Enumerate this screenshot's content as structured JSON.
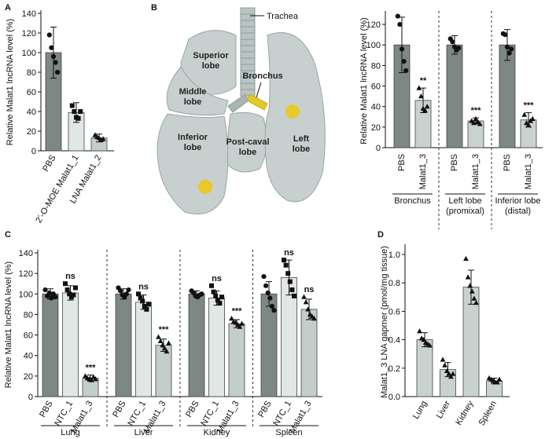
{
  "chart_data": [
    {
      "type": "bar",
      "panel": "A",
      "ylabel": "Relative Malat1 lncRNA level (%)",
      "categories": [
        "PBS",
        "2’-O-MOE Malat1_1",
        "LNA Malat1_2"
      ],
      "values": [
        100,
        39,
        13
      ],
      "errors": [
        26,
        10,
        4
      ],
      "points": [
        [
          118,
          105,
          96,
          90,
          80
        ],
        [
          46,
          40,
          34,
          33,
          40
        ],
        [
          16,
          14,
          13,
          11,
          12
        ]
      ],
      "colors": [
        "#7d8784",
        "#e1e7e5",
        "#c3cdca"
      ],
      "markers": [
        "circle",
        "square",
        "triangle"
      ],
      "ylim": [
        0,
        140
      ],
      "yticks": [
        0,
        20,
        40,
        60,
        80,
        100,
        120,
        140
      ]
    },
    {
      "type": "bar",
      "panel": "B",
      "ylabel": "Relative Malat1 lncRNA level (%)",
      "groups": [
        [
          "Bronchus"
        ],
        [
          "Left lobe",
          "(promixal)"
        ],
        [
          "Inferior lobe",
          "(distal)"
        ]
      ],
      "categories": [
        "PBS",
        "Malat1_3",
        "PBS",
        "Malat1_3",
        "PBS",
        "Malat1_3"
      ],
      "values": [
        100,
        46,
        100,
        26,
        100,
        27
      ],
      "errors": [
        27,
        12,
        9,
        3,
        15,
        7
      ],
      "annotations": [
        null,
        "**",
        null,
        "***",
        null,
        "***"
      ],
      "points": [
        [
          128,
          120,
          96,
          84,
          75
        ],
        [
          58,
          50,
          38,
          36,
          40
        ],
        [
          106,
          103,
          98,
          95,
          97
        ],
        [
          26,
          24,
          28,
          25,
          23
        ],
        [
          111,
          110,
          98,
          92,
          96
        ],
        [
          32,
          24,
          22,
          26,
          28
        ]
      ],
      "colors": [
        "#7d8784",
        "#c9d2cf"
      ],
      "markers": [
        "circle",
        "triangle"
      ],
      "ylim": [
        0,
        130
      ],
      "yticks": [
        0,
        20,
        40,
        60,
        80,
        100,
        120
      ]
    },
    {
      "type": "bar",
      "panel": "C",
      "ylabel": "Relative Malat1 lncRNA level (%)",
      "groups": [
        [
          "Lung"
        ],
        [
          "Liver"
        ],
        [
          "Kidney"
        ],
        [
          "Spleen"
        ]
      ],
      "categories": [
        "PBS",
        "NTC_1",
        "Malat1_3",
        "PBS",
        "NTC_1",
        "Malat1_3",
        "PBS",
        "NTC_1",
        "Malat1_3",
        "PBS",
        "NTC_1",
        "Malat1_3"
      ],
      "values": [
        100,
        101,
        18,
        100,
        92,
        50,
        100,
        96,
        71,
        100,
        116,
        85
      ],
      "errors": [
        5,
        7,
        3,
        5,
        7,
        6,
        3,
        7,
        4,
        12,
        17,
        10
      ],
      "annotations": [
        null,
        "ns",
        "***",
        null,
        "ns",
        "***",
        null,
        "ns",
        "***",
        null,
        "ns",
        "ns"
      ],
      "points": [
        [
          104,
          98,
          101,
          96,
          100,
          97
        ],
        [
          110,
          104,
          100,
          97,
          99,
          106
        ],
        [
          20,
          18,
          17,
          16,
          19,
          17
        ],
        [
          106,
          103,
          99,
          97,
          100,
          104
        ],
        [
          100,
          96,
          93,
          88,
          85,
          90
        ],
        [
          58,
          54,
          50,
          47,
          44,
          52
        ],
        [
          103,
          101,
          98,
          97,
          99,
          100
        ],
        [
          108,
          102,
          98,
          94,
          91,
          97
        ],
        [
          76,
          73,
          72,
          70,
          68,
          71
        ],
        [
          117,
          108,
          101,
          96,
          88,
          84
        ],
        [
          133,
          128,
          120,
          112,
          104,
          98
        ],
        [
          97,
          92,
          85,
          80,
          78,
          76
        ]
      ],
      "colors": [
        "#7d8784",
        "#e1e7e5",
        "#c3cdca"
      ],
      "markers": [
        "circle",
        "square",
        "triangle"
      ],
      "ylim": [
        0,
        140
      ],
      "yticks": [
        0,
        20,
        40,
        60,
        80,
        100,
        120,
        140
      ]
    },
    {
      "type": "bar",
      "panel": "D",
      "ylabel": "Malat1_3 LNA gapmer (pmol/mg tissue)",
      "categories": [
        "Lung",
        "Liver",
        "Kidney",
        "Spleen"
      ],
      "values": [
        0.4,
        0.19,
        0.77,
        0.11
      ],
      "errors": [
        0.05,
        0.05,
        0.12,
        0.02
      ],
      "points": [
        [
          0.46,
          0.41,
          0.4,
          0.38,
          0.37,
          0.36
        ],
        [
          0.26,
          0.22,
          0.18,
          0.16,
          0.14,
          0.16
        ],
        [
          0.97,
          0.84,
          0.78,
          0.74,
          0.69,
          0.66
        ],
        [
          0.13,
          0.12,
          0.11,
          0.1,
          0.1,
          0.12
        ]
      ],
      "colors": [
        "#c9d2cf"
      ],
      "markers": [
        "triangle"
      ],
      "ylim": [
        0,
        1.05
      ],
      "yticks": [
        {
          "value": 0,
          "label": "0.0"
        },
        0.2,
        0.4,
        0.6,
        0.8,
        {
          "value": 1,
          "label": "1.0"
        }
      ]
    }
  ],
  "diagram": {
    "labels": {
      "trachea": "Trachea",
      "superior": [
        "Superior",
        "lobe"
      ],
      "middle": [
        "Middle",
        "lobe"
      ],
      "inferior": [
        "Inferior",
        "lobe"
      ],
      "postcaval": [
        "Post-caval",
        "lobe"
      ],
      "bronchus": "Bronchus",
      "left": [
        "Left",
        "lobe"
      ]
    }
  }
}
